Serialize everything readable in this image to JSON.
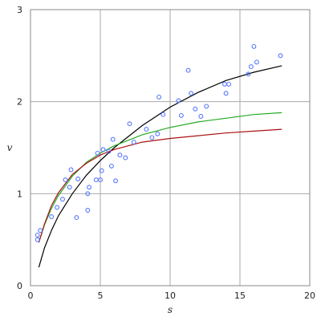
{
  "chart_data": {
    "type": "scatter",
    "title": "",
    "xlabel": "s",
    "ylabel": "v",
    "xlim": [
      0,
      20
    ],
    "ylim": [
      0,
      3
    ],
    "xticks": [
      0,
      5,
      10,
      15,
      20
    ],
    "yticks": [
      0,
      1,
      2,
      3
    ],
    "grid": true,
    "legend": "none",
    "colors": {
      "points": "#5577ff",
      "black_curve": "#000000",
      "green_curve": "#22aa22",
      "red_curve": "#aa1111",
      "grid": "#aaaaaa",
      "frame": "#888888"
    },
    "points": [
      [
        0.5,
        0.5
      ],
      [
        0.5,
        0.55
      ],
      [
        0.7,
        0.6
      ],
      [
        1.5,
        0.75
      ],
      [
        1.9,
        0.85
      ],
      [
        2.3,
        0.94
      ],
      [
        2.5,
        1.15
      ],
      [
        2.8,
        1.07
      ],
      [
        2.9,
        1.26
      ],
      [
        3.3,
        0.74
      ],
      [
        3.4,
        1.16
      ],
      [
        4.1,
        0.82
      ],
      [
        4.1,
        1.0
      ],
      [
        4.2,
        1.07
      ],
      [
        4.7,
        1.15
      ],
      [
        4.8,
        1.44
      ],
      [
        5.0,
        1.15
      ],
      [
        5.1,
        1.25
      ],
      [
        5.2,
        1.48
      ],
      [
        5.6,
        1.46
      ],
      [
        5.8,
        1.3
      ],
      [
        5.9,
        1.59
      ],
      [
        6.1,
        1.14
      ],
      [
        6.4,
        1.42
      ],
      [
        6.8,
        1.39
      ],
      [
        7.1,
        1.76
      ],
      [
        7.4,
        1.56
      ],
      [
        8.3,
        1.7
      ],
      [
        8.7,
        1.61
      ],
      [
        9.1,
        1.65
      ],
      [
        9.2,
        2.05
      ],
      [
        9.5,
        1.86
      ],
      [
        10.6,
        2.01
      ],
      [
        10.8,
        1.85
      ],
      [
        11.3,
        2.34
      ],
      [
        11.5,
        2.09
      ],
      [
        11.8,
        1.92
      ],
      [
        12.2,
        1.84
      ],
      [
        12.6,
        1.95
      ],
      [
        13.9,
        2.19
      ],
      [
        14.0,
        2.09
      ],
      [
        14.2,
        2.19
      ],
      [
        15.6,
        2.3
      ],
      [
        15.8,
        2.38
      ],
      [
        16.0,
        2.6
      ],
      [
        16.2,
        2.43
      ],
      [
        17.9,
        2.5
      ]
    ],
    "series": [
      {
        "color_key": "black_curve",
        "x": [
          0.6,
          1.0,
          1.5,
          2.0,
          3.0,
          4.0,
          5.0,
          6.0,
          8.0,
          10.0,
          12.0,
          14.0,
          16.0,
          18.0
        ],
        "y": [
          0.2,
          0.41,
          0.6,
          0.76,
          1.0,
          1.2,
          1.36,
          1.5,
          1.74,
          1.94,
          2.1,
          2.23,
          2.32,
          2.39
        ]
      },
      {
        "color_key": "green_curve",
        "x": [
          0.6,
          1.0,
          1.5,
          2.0,
          3.0,
          4.0,
          5.0,
          6.0,
          8.0,
          10.0,
          12.0,
          14.0,
          16.0,
          18.0
        ],
        "y": [
          0.47,
          0.66,
          0.84,
          0.98,
          1.19,
          1.34,
          1.44,
          1.52,
          1.64,
          1.72,
          1.78,
          1.82,
          1.86,
          1.88
        ]
      },
      {
        "color_key": "red_curve",
        "x": [
          0.6,
          1.0,
          1.5,
          2.0,
          3.0,
          4.0,
          5.0,
          6.0,
          8.0,
          10.0,
          12.0,
          14.0,
          16.0,
          18.0
        ],
        "y": [
          0.47,
          0.67,
          0.87,
          1.01,
          1.21,
          1.33,
          1.42,
          1.48,
          1.56,
          1.6,
          1.63,
          1.66,
          1.68,
          1.7
        ]
      }
    ]
  }
}
